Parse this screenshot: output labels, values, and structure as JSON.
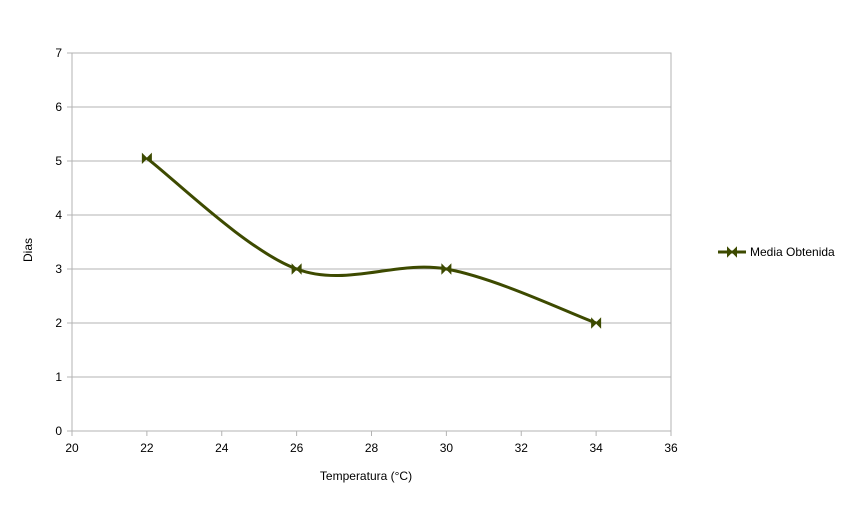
{
  "chart_data": {
    "type": "scatter",
    "title": "",
    "xlabel": "Temperatura (°C)",
    "ylabel": "Dias",
    "xlim": [
      20,
      36
    ],
    "ylim": [
      0,
      7
    ],
    "x_ticks": [
      20,
      22,
      24,
      26,
      28,
      30,
      32,
      34,
      36
    ],
    "y_ticks": [
      0,
      1,
      2,
      3,
      4,
      5,
      6,
      7
    ],
    "x_tick_labels": [
      "20",
      "22",
      "24",
      "26",
      "28",
      "30",
      "32",
      "34",
      "36"
    ],
    "y_tick_labels": [
      "0",
      "1",
      "2",
      "3",
      "4",
      "5",
      "6",
      "7"
    ],
    "grid": {
      "horizontal": true,
      "vertical": false
    },
    "legend": {
      "position": "right",
      "show": true
    },
    "line_style": "smooth",
    "marker": "bowtie",
    "series": [
      {
        "name": "Media Obtenida",
        "color": "#3d4a00",
        "points": [
          {
            "x": 22,
            "y": 5.05
          },
          {
            "x": 26,
            "y": 3.0
          },
          {
            "x": 30,
            "y": 3.0
          },
          {
            "x": 34,
            "y": 2.0
          }
        ]
      }
    ]
  }
}
